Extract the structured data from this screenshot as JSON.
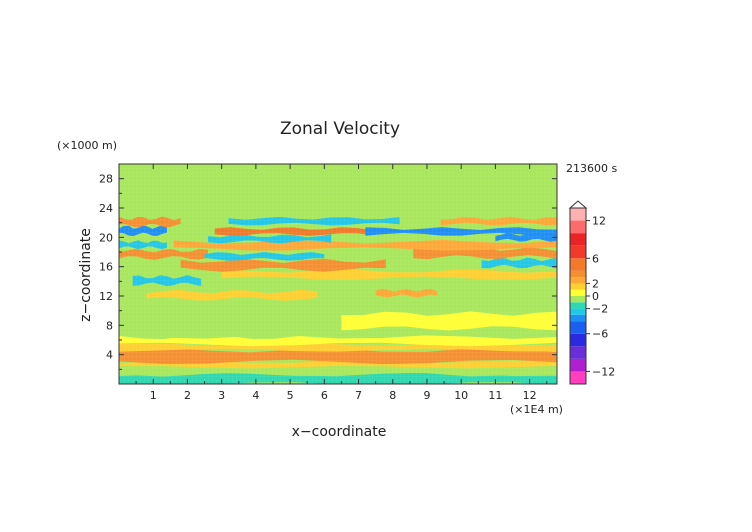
{
  "chart_data": {
    "type": "heatmap",
    "title": "Zonal Velocity",
    "xlabel": "x−coordinate",
    "ylabel": "z−coordinate",
    "x_unit": "(×1E4 m)",
    "y_unit": "(×1000 m)",
    "time_label": "213600 s",
    "x_ticks": [
      "1",
      "2",
      "3",
      "4",
      "5",
      "6",
      "7",
      "8",
      "9",
      "10",
      "11",
      "12"
    ],
    "y_ticks": [
      "4",
      "8",
      "12",
      "16",
      "20",
      "24",
      "28"
    ],
    "xlim": [
      0,
      12.8
    ],
    "ylim": [
      0,
      30
    ],
    "legend_ticks": [
      "12",
      "6",
      "2",
      "0",
      "−2",
      "−6",
      "−12"
    ],
    "colorbar": [
      {
        "lo": -14,
        "hi": -12,
        "color": "#ff3fbf"
      },
      {
        "lo": -12,
        "hi": -10,
        "color": "#b020d0"
      },
      {
        "lo": -10,
        "hi": -8,
        "color": "#6a2ed8"
      },
      {
        "lo": -8,
        "hi": -6,
        "color": "#2a2ae0"
      },
      {
        "lo": -6,
        "hi": -4,
        "color": "#1a5ff0"
      },
      {
        "lo": -4,
        "hi": -3,
        "color": "#1e8ff5"
      },
      {
        "lo": -3,
        "hi": -2,
        "color": "#22c8e8"
      },
      {
        "lo": -2,
        "hi": -1,
        "color": "#2ed8b0"
      },
      {
        "lo": -1,
        "hi": 0,
        "color": "#a8e85a"
      },
      {
        "lo": 0,
        "hi": 1,
        "color": "#ffff33"
      },
      {
        "lo": 1,
        "hi": 2,
        "color": "#ffd030"
      },
      {
        "lo": 2,
        "hi": 3,
        "color": "#ffa838"
      },
      {
        "lo": 3,
        "hi": 4,
        "color": "#f59030"
      },
      {
        "lo": 4,
        "hi": 6,
        "color": "#f27a2a"
      },
      {
        "lo": 6,
        "hi": 8,
        "color": "#f23a2a"
      },
      {
        "lo": 8,
        "hi": 10,
        "color": "#e82424"
      },
      {
        "lo": 10,
        "hi": 12,
        "color": "#ff6a6a"
      },
      {
        "lo": 12,
        "hi": 14,
        "color": "#ffb0b0"
      }
    ],
    "bands": [
      {
        "z": [
          0,
          1.3
        ],
        "x": [
          0,
          12.8
        ],
        "color": "#2ed8b0"
      },
      {
        "z": [
          1.3,
          2.3
        ],
        "x": [
          0,
          12.8
        ],
        "color": "#a8e85a"
      },
      {
        "z": [
          2.3,
          3.0
        ],
        "x": [
          0,
          12.8
        ],
        "color": "#ffd030"
      },
      {
        "z": [
          3.0,
          4.6
        ],
        "x": [
          0,
          12.8
        ],
        "color": "#f59030"
      },
      {
        "z": [
          4.6,
          5.4
        ],
        "x": [
          0,
          12.8
        ],
        "color": "#ffd030"
      },
      {
        "z": [
          5.4,
          6.4
        ],
        "x": [
          0,
          12.8
        ],
        "color": "#ffff33"
      },
      {
        "z": [
          6.4,
          8.5
        ],
        "x": [
          0,
          6.5
        ],
        "color": "#a8e85a"
      },
      {
        "z": [
          7.6,
          9.6
        ],
        "x": [
          6.5,
          12.8
        ],
        "color": "#ffff33"
      },
      {
        "z": [
          11.6,
          12.6
        ],
        "x": [
          0.8,
          5.8
        ],
        "color": "#ffd030"
      },
      {
        "z": [
          12.0,
          12.8
        ],
        "x": [
          7.5,
          9.3
        ],
        "color": "#ffa838"
      },
      {
        "z": [
          13.6,
          14.6
        ],
        "x": [
          0.4,
          2.4
        ],
        "color": "#22c8e8"
      },
      {
        "z": [
          14.4,
          15.4
        ],
        "x": [
          3.0,
          12.8
        ],
        "color": "#ffd030"
      },
      {
        "z": [
          15.6,
          16.8
        ],
        "x": [
          1.8,
          7.8
        ],
        "color": "#f59030"
      },
      {
        "z": [
          16.0,
          17.0
        ],
        "x": [
          10.6,
          12.8
        ],
        "color": "#22c8e8"
      },
      {
        "z": [
          17.2,
          18.2
        ],
        "x": [
          0,
          2.6
        ],
        "color": "#f59030"
      },
      {
        "z": [
          17.0,
          17.8
        ],
        "x": [
          2.5,
          6.0
        ],
        "color": "#22c8e8"
      },
      {
        "z": [
          17.3,
          18.4
        ],
        "x": [
          8.6,
          12.8
        ],
        "color": "#f59030"
      },
      {
        "z": [
          18.6,
          19.4
        ],
        "x": [
          0,
          1.4
        ],
        "color": "#22c8e8"
      },
      {
        "z": [
          18.4,
          19.4
        ],
        "x": [
          1.6,
          12.8
        ],
        "color": "#ffa838"
      },
      {
        "z": [
          19.4,
          20.2
        ],
        "x": [
          2.6,
          6.2
        ],
        "color": "#22c8e8"
      },
      {
        "z": [
          19.6,
          20.4
        ],
        "x": [
          11.0,
          12.8
        ],
        "color": "#1e8ff5"
      },
      {
        "z": [
          20.4,
          21.4
        ],
        "x": [
          0,
          1.4
        ],
        "color": "#1e8ff5"
      },
      {
        "z": [
          20.4,
          21.2
        ],
        "x": [
          2.8,
          7.4
        ],
        "color": "#f27a2a"
      },
      {
        "z": [
          20.4,
          21.2
        ],
        "x": [
          7.2,
          12.8
        ],
        "color": "#1e8ff5"
      },
      {
        "z": [
          21.6,
          22.6
        ],
        "x": [
          0,
          1.8
        ],
        "color": "#f59030"
      },
      {
        "z": [
          21.8,
          22.6
        ],
        "x": [
          3.2,
          8.2
        ],
        "color": "#22c8e8"
      },
      {
        "z": [
          21.8,
          22.6
        ],
        "x": [
          9.4,
          12.8
        ],
        "color": "#ffa838"
      },
      {
        "z": [
          23.0,
          24.2
        ],
        "x": [
          2.0,
          9.6
        ],
        "color": "#a8e85a"
      },
      {
        "z": [
          26.8,
          28.4
        ],
        "x": [
          1.6,
          3.4
        ],
        "color": "#a8e85a"
      },
      {
        "z": [
          25.6,
          27.6
        ],
        "x": [
          4.6,
          7.6
        ],
        "color": "#a8e85a"
      },
      {
        "z": [
          27.2,
          30.0
        ],
        "x": [
          10.6,
          12.8
        ],
        "color": "#a8e85a"
      },
      {
        "z": [
          24.4,
          25.6
        ],
        "x": [
          0.2,
          1.6
        ],
        "color": "#a8e85a"
      }
    ]
  }
}
